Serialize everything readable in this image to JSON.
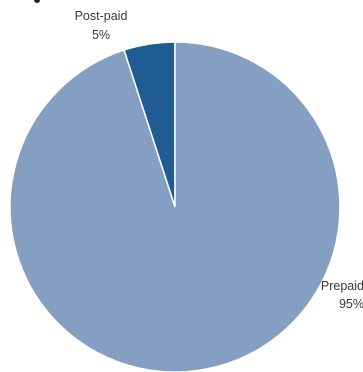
{
  "chart_data": {
    "type": "pie",
    "title": "",
    "slices": [
      {
        "label": "Post-paid",
        "value_label": "5%",
        "value": 5,
        "color": "#1f5c94"
      },
      {
        "label": "Prepaid",
        "value_label": "95%",
        "value": 95,
        "color": "#859fc3"
      }
    ],
    "start_angle_deg": 0,
    "direction": "counterclockwise",
    "stroke_color": "#ffffff"
  }
}
